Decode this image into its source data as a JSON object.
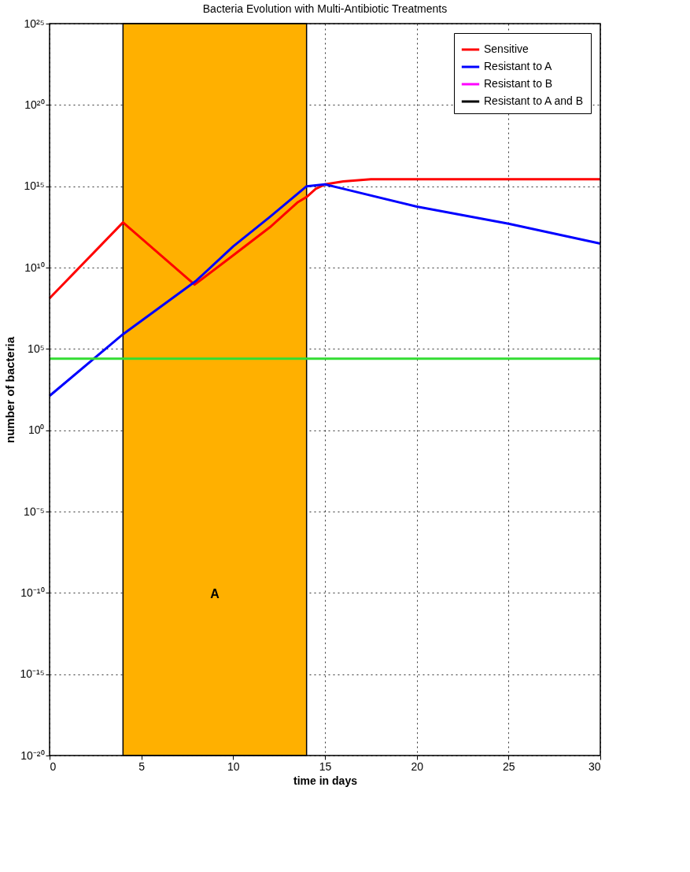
{
  "chart_data": {
    "type": "line",
    "title": "Bacteria Evolution with Multi-Antibiotic Treatments",
    "xlabel": "time in days",
    "ylabel": "number of bacteria",
    "log": "y",
    "grid": true,
    "legend": "top right",
    "line_style": "solid",
    "marker": "none",
    "xlim": [
      0,
      30
    ],
    "xticks": [
      0,
      5,
      10,
      15,
      20,
      25,
      30
    ],
    "ylim": [
      1e-20,
      1e+25
    ],
    "yticks": [
      {
        "value": 1e-20,
        "label": "10⁻²⁰"
      },
      {
        "value": 1e-15,
        "label": "10⁻¹⁵"
      },
      {
        "value": 1e-10,
        "label": "10⁻¹⁰"
      },
      {
        "value": 1e-05,
        "label": "10⁻⁵"
      },
      {
        "value": 1,
        "label": "10⁰"
      },
      {
        "value": 100000.0,
        "label": "10⁵"
      },
      {
        "value": 10000000000.0,
        "label": "10¹⁰"
      },
      {
        "value": 1000000000000000.0,
        "label": "10¹⁵"
      },
      {
        "value": 1e+20,
        "label": "10²⁰"
      },
      {
        "value": 1e+25,
        "label": "10²⁵"
      }
    ],
    "bands": [
      {
        "axis": "x",
        "from": 4,
        "to": 14,
        "label": "A",
        "color": "#ffb000"
      }
    ],
    "series": [
      {
        "name": "Sensitive",
        "color": "#ff0000",
        "x": [
          0,
          4,
          7.9,
          10,
          12,
          13.5,
          14,
          14.5,
          15,
          16,
          17.5,
          20,
          25,
          30
        ],
        "values": [
          130000000.0,
          6000000000000.0,
          900000000.0,
          56000000000.0,
          3000000000000.0,
          100000000000000.0,
          220000000000000.0,
          700000000000000.0,
          1300000000000000.0,
          2000000000000000.0,
          2700000000000000.0,
          2700000000000000.0,
          2700000000000000.0,
          2700000000000000.0
        ]
      },
      {
        "name": "Resistant to A",
        "color": "#0000ff",
        "x": [
          0,
          4,
          8,
          10,
          12,
          14,
          15,
          16,
          20,
          25,
          30
        ],
        "values": [
          130,
          800000.0,
          1600000000.0,
          200000000000.0,
          13000000000000.0,
          1000000000000000.0,
          1300000000000000.0,
          700000000000000.0,
          56000000000000.0,
          5000000000000.0,
          300000000000.0
        ]
      },
      {
        "name": "Resistant to B",
        "color": "#ff00ff"
      },
      {
        "name": "Resistant to A and B",
        "color": "#000000"
      },
      {
        "color": "#33dd33",
        "x": [
          0,
          30
        ],
        "values": [
          25000.0,
          25000.0
        ]
      }
    ]
  }
}
